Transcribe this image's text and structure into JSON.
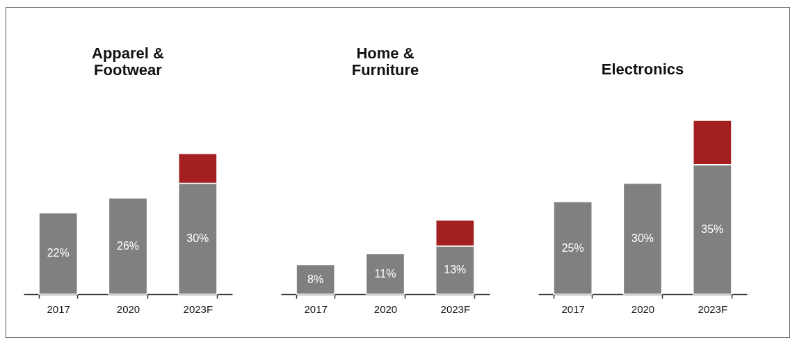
{
  "chart_data": [
    {
      "type": "bar",
      "stacked": true,
      "title": "Apparel & Footwear",
      "categories": [
        "2017",
        "2020",
        "2023F"
      ],
      "series": [
        {
          "color": "#808080",
          "values": [
            22,
            26,
            30
          ],
          "value_labels": [
            "22%",
            "26%",
            "30%"
          ]
        },
        {
          "color": "#a31f20",
          "values": [
            null,
            null,
            8
          ]
        }
      ]
    },
    {
      "type": "bar",
      "stacked": true,
      "title": "Home & Furniture",
      "categories": [
        "2017",
        "2020",
        "2023F"
      ],
      "series": [
        {
          "color": "#808080",
          "values": [
            8,
            11,
            13
          ],
          "value_labels": [
            "8%",
            "11%",
            "13%"
          ]
        },
        {
          "color": "#a31f20",
          "values": [
            null,
            null,
            7
          ]
        }
      ]
    },
    {
      "type": "bar",
      "stacked": true,
      "title": "Electronics",
      "categories": [
        "2017",
        "2020",
        "2023F"
      ],
      "series": [
        {
          "color": "#808080",
          "values": [
            25,
            30,
            35
          ],
          "value_labels": [
            "25%",
            "30%",
            "35%"
          ]
        },
        {
          "color": "#a31f20",
          "values": [
            null,
            null,
            12
          ]
        }
      ]
    }
  ]
}
